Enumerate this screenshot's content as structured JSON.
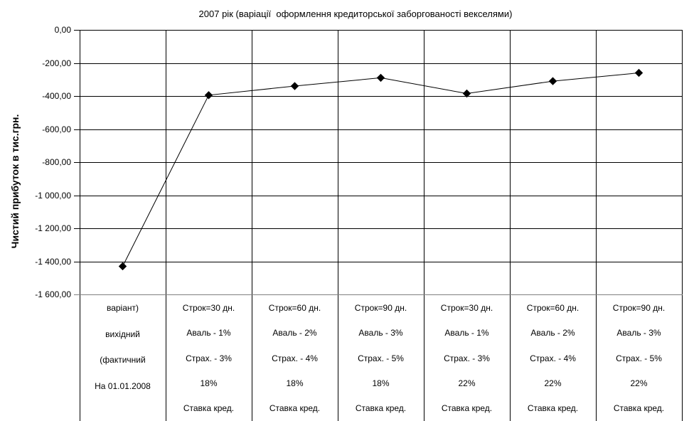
{
  "chart_data": {
    "type": "line",
    "title": "2007 рік (варіації  оформлення кредиторської заборгованості векселями)",
    "ylabel": "Чистий прибуток в тис.грн.",
    "xlabel": "",
    "ylim": [
      -1600,
      0
    ],
    "y_tick_labels": [
      "0,00",
      "-200,00",
      "-400,00",
      "-600,00",
      "-800,00",
      "-1 000,00",
      "-1 200,00",
      "-1 400,00",
      "-1 600,00"
    ],
    "y_tick_values": [
      0,
      -200,
      -400,
      -600,
      -800,
      -1000,
      -1200,
      -1400,
      -1600
    ],
    "categories": [
      [
        "варіант)",
        "вихідний",
        "(фактичний",
        "На 01.01.2008"
      ],
      [
        "Строк=30 дн.",
        "Аваль - 1%",
        "Страх. - 3%",
        "18%",
        "Ставка кред."
      ],
      [
        "Строк=60 дн.",
        "Аваль - 2%",
        "Страх. - 4%",
        "18%",
        "Ставка кред."
      ],
      [
        "Строк=90 дн.",
        "Аваль - 3%",
        "Страх. - 5%",
        "18%",
        "Ставка кред."
      ],
      [
        "Строк=30 дн.",
        "Аваль - 1%",
        "Страх. - 3%",
        "22%",
        "Ставка кред."
      ],
      [
        "Строк=60 дн.",
        "Аваль - 2%",
        "Страх. - 4%",
        "22%",
        "Ставка кред."
      ],
      [
        "Строк=90 дн.",
        "Аваль - 3%",
        "Страх. - 5%",
        "22%",
        "Ставка кред."
      ]
    ],
    "values": [
      -1430,
      -395,
      -340,
      -290,
      -385,
      -310,
      -260
    ],
    "marker": "diamond",
    "grid": "both",
    "legend": "none",
    "colors": {
      "line": "#000000",
      "marker": "#000000",
      "gridline": "#000000",
      "category_axis_line": "#808080",
      "background": "#ffffff",
      "text": "#000000"
    }
  }
}
